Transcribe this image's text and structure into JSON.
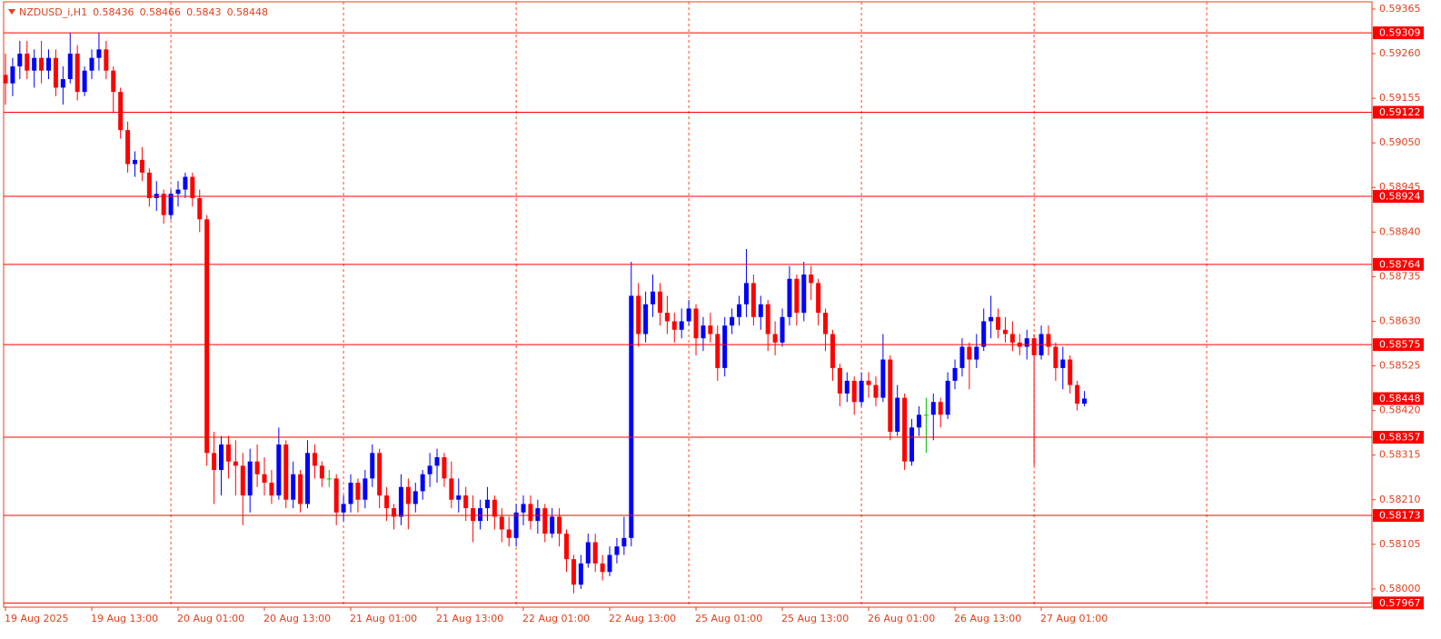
{
  "chart_data": {
    "type": "candlestick",
    "title": "NZDUSD_i,H1",
    "up_color": "#0000ff",
    "down_color": "#ff0000",
    "doji_color": "#00c000",
    "level_color": "#ff0000",
    "separator_color": "#ff4a1c",
    "period_separators": true,
    "ylim": [
      0.57957,
      0.59382
    ],
    "yticks": [
      0.59365,
      {
        "value": 0.5926,
        "label": "0.59260"
      },
      0.59155,
      {
        "value": 0.5905,
        "label": "0.59050"
      },
      0.58945,
      {
        "value": 0.5884,
        "label": "0.58840"
      },
      0.58735,
      {
        "value": 0.5863,
        "label": "0.58630"
      },
      0.58525,
      {
        "value": 0.5842,
        "label": "0.58420"
      },
      0.58315,
      {
        "value": 0.5821,
        "label": "0.58210"
      },
      0.58105,
      {
        "value": 0.58,
        "label": "0.58000"
      }
    ],
    "levels": [
      0.59309,
      0.59122,
      0.58924,
      0.58764,
      0.58575,
      0.58357,
      0.58173,
      0.57967
    ],
    "categories": [
      "19 Aug 2025",
      null,
      null,
      null,
      null,
      null,
      null,
      null,
      null,
      null,
      null,
      null,
      "19 Aug 13:00",
      null,
      null,
      null,
      null,
      null,
      null,
      null,
      null,
      null,
      null,
      null,
      "20 Aug 01:00",
      null,
      null,
      null,
      null,
      null,
      null,
      null,
      null,
      null,
      null,
      null,
      "20 Aug 13:00",
      null,
      null,
      null,
      null,
      null,
      null,
      null,
      null,
      null,
      null,
      null,
      "21 Aug 01:00",
      null,
      null,
      null,
      null,
      null,
      null,
      null,
      null,
      null,
      null,
      null,
      "21 Aug 13:00",
      null,
      null,
      null,
      null,
      null,
      null,
      null,
      null,
      null,
      null,
      null,
      "22 Aug 01:00",
      null,
      null,
      null,
      null,
      null,
      null,
      null,
      null,
      null,
      null,
      null,
      "22 Aug 13:00",
      null,
      null,
      null,
      null,
      null,
      null,
      null,
      null,
      null,
      null,
      null,
      "25 Aug 01:00",
      null,
      null,
      null,
      null,
      null,
      null,
      null,
      null,
      null,
      null,
      null,
      "25 Aug 13:00",
      null,
      null,
      null,
      null,
      null,
      null,
      null,
      null,
      null,
      null,
      null,
      "26 Aug 01:00",
      null,
      null,
      null,
      null,
      null,
      null,
      null,
      null,
      null,
      null,
      null,
      "26 Aug 13:00",
      null,
      null,
      null,
      null,
      null,
      null,
      null,
      null,
      null,
      null,
      null,
      "27 Aug 01:00",
      null,
      null,
      null,
      null,
      null,
      null
    ],
    "ohlc": [
      [
        0.5921,
        0.5926,
        0.5914,
        0.5919
      ],
      [
        0.5919,
        0.5925,
        0.5916,
        0.5923
      ],
      [
        0.5923,
        0.5929,
        0.592,
        0.5926
      ],
      [
        0.5926,
        0.5929,
        0.592,
        0.5922
      ],
      [
        0.5922,
        0.5927,
        0.5918,
        0.5925
      ],
      [
        0.5925,
        0.5929,
        0.5919,
        0.5922
      ],
      [
        0.5922,
        0.5927,
        0.592,
        0.5925
      ],
      [
        0.5925,
        0.5927,
        0.5916,
        0.5918
      ],
      [
        0.5918,
        0.5923,
        0.5914,
        0.592
      ],
      [
        0.592,
        0.5931,
        0.5919,
        0.5926
      ],
      [
        0.5926,
        0.5928,
        0.5915,
        0.5917
      ],
      [
        0.5917,
        0.5923,
        0.5916,
        0.5922
      ],
      [
        0.5922,
        0.5927,
        0.592,
        0.5925
      ],
      [
        0.5925,
        0.5931,
        0.5922,
        0.5927
      ],
      [
        0.5927,
        0.5929,
        0.592,
        0.5922
      ],
      [
        0.5922,
        0.5923,
        0.5912,
        0.5917
      ],
      [
        0.5917,
        0.5918,
        0.5906,
        0.5908
      ],
      [
        0.5908,
        0.591,
        0.5898,
        0.59
      ],
      [
        0.59,
        0.5903,
        0.5897,
        0.5901
      ],
      [
        0.5901,
        0.5904,
        0.5896,
        0.5898
      ],
      [
        0.5898,
        0.5899,
        0.589,
        0.5892
      ],
      [
        0.5892,
        0.5896,
        0.5889,
        0.5893
      ],
      [
        0.5893,
        0.5894,
        0.5886,
        0.5888
      ],
      [
        0.5888,
        0.5894,
        0.5887,
        0.5893
      ],
      [
        0.5893,
        0.5896,
        0.589,
        0.5894
      ],
      [
        0.5894,
        0.5898,
        0.5892,
        0.5897
      ],
      [
        0.5897,
        0.5898,
        0.589,
        0.5892
      ],
      [
        0.5892,
        0.5894,
        0.5884,
        0.5887
      ],
      [
        0.5887,
        0.5888,
        0.5829,
        0.5832
      ],
      [
        0.5832,
        0.5837,
        0.582,
        0.5828
      ],
      [
        0.5828,
        0.5836,
        0.5822,
        0.5834
      ],
      [
        0.5834,
        0.5836,
        0.5826,
        0.583
      ],
      [
        0.583,
        0.5835,
        0.5822,
        0.5829
      ],
      [
        0.5829,
        0.5832,
        0.5815,
        0.5822
      ],
      [
        0.5822,
        0.5833,
        0.5818,
        0.583
      ],
      [
        0.583,
        0.5834,
        0.5824,
        0.5827
      ],
      [
        0.5827,
        0.5831,
        0.5822,
        0.5825
      ],
      [
        0.5825,
        0.5828,
        0.582,
        0.5822
      ],
      [
        0.5822,
        0.5838,
        0.5821,
        0.5834
      ],
      [
        0.5834,
        0.5835,
        0.5819,
        0.5821
      ],
      [
        0.5821,
        0.583,
        0.5819,
        0.5827
      ],
      [
        0.5827,
        0.5828,
        0.5818,
        0.582
      ],
      [
        0.582,
        0.5835,
        0.5819,
        0.5832
      ],
      [
        0.5832,
        0.5834,
        0.5826,
        0.5829
      ],
      [
        0.5829,
        0.583,
        0.5824,
        0.5826
      ],
      [
        0.5826,
        0.5828,
        0.5824,
        0.5826
      ],
      [
        0.5826,
        0.5827,
        0.5815,
        0.5818
      ],
      [
        0.5818,
        0.5822,
        0.5816,
        0.582
      ],
      [
        0.582,
        0.5827,
        0.5818,
        0.5825
      ],
      [
        0.5825,
        0.5826,
        0.5818,
        0.5821
      ],
      [
        0.5821,
        0.5828,
        0.5819,
        0.5826
      ],
      [
        0.5826,
        0.5834,
        0.5824,
        0.5832
      ],
      [
        0.5832,
        0.5833,
        0.5819,
        0.5822
      ],
      [
        0.5822,
        0.5824,
        0.5816,
        0.5819
      ],
      [
        0.5819,
        0.582,
        0.5814,
        0.5817
      ],
      [
        0.5817,
        0.5827,
        0.5815,
        0.5824
      ],
      [
        0.5824,
        0.5826,
        0.5814,
        0.582
      ],
      [
        0.582,
        0.5825,
        0.5818,
        0.5823
      ],
      [
        0.5823,
        0.5828,
        0.5821,
        0.5827
      ],
      [
        0.5827,
        0.5832,
        0.5824,
        0.5829
      ],
      [
        0.5829,
        0.5833,
        0.5825,
        0.5831
      ],
      [
        0.5831,
        0.5832,
        0.5824,
        0.5826
      ],
      [
        0.5826,
        0.583,
        0.5819,
        0.5821
      ],
      [
        0.5821,
        0.5826,
        0.5818,
        0.5822
      ],
      [
        0.5822,
        0.5824,
        0.5816,
        0.5819
      ],
      [
        0.5819,
        0.5822,
        0.5811,
        0.5816
      ],
      [
        0.5816,
        0.5821,
        0.5814,
        0.5819
      ],
      [
        0.5819,
        0.5824,
        0.5816,
        0.5821
      ],
      [
        0.5821,
        0.5822,
        0.5814,
        0.5817
      ],
      [
        0.5817,
        0.5819,
        0.5811,
        0.5814
      ],
      [
        0.5814,
        0.5817,
        0.581,
        0.5812
      ],
      [
        0.5812,
        0.582,
        0.581,
        0.5818
      ],
      [
        0.5818,
        0.5822,
        0.5815,
        0.582
      ],
      [
        0.582,
        0.5822,
        0.5814,
        0.5816
      ],
      [
        0.5816,
        0.5821,
        0.5813,
        0.5819
      ],
      [
        0.5819,
        0.582,
        0.5811,
        0.5813
      ],
      [
        0.5813,
        0.5819,
        0.5812,
        0.5817
      ],
      [
        0.5817,
        0.5819,
        0.581,
        0.5813
      ],
      [
        0.5813,
        0.5814,
        0.5804,
        0.5807
      ],
      [
        0.5807,
        0.5808,
        0.5799,
        0.5801
      ],
      [
        0.5801,
        0.5808,
        0.58,
        0.5806
      ],
      [
        0.5806,
        0.5813,
        0.5805,
        0.5811
      ],
      [
        0.5811,
        0.5813,
        0.5804,
        0.5806
      ],
      [
        0.5806,
        0.5808,
        0.5802,
        0.5804
      ],
      [
        0.5804,
        0.581,
        0.5803,
        0.5808
      ],
      [
        0.5808,
        0.5812,
        0.5806,
        0.581
      ],
      [
        0.581,
        0.5817,
        0.5808,
        0.5812
      ],
      [
        0.5812,
        0.5877,
        0.581,
        0.5869
      ],
      [
        0.5869,
        0.5872,
        0.5857,
        0.586
      ],
      [
        0.586,
        0.587,
        0.5858,
        0.5867
      ],
      [
        0.5867,
        0.5874,
        0.5864,
        0.587
      ],
      [
        0.587,
        0.5872,
        0.5862,
        0.5865
      ],
      [
        0.5865,
        0.5869,
        0.586,
        0.5863
      ],
      [
        0.5863,
        0.5865,
        0.5858,
        0.5861
      ],
      [
        0.5861,
        0.5866,
        0.5859,
        0.5863
      ],
      [
        0.5863,
        0.5868,
        0.5862,
        0.5866
      ],
      [
        0.5866,
        0.5867,
        0.5855,
        0.5859
      ],
      [
        0.5859,
        0.5864,
        0.5856,
        0.5862
      ],
      [
        0.5862,
        0.5865,
        0.5858,
        0.586
      ],
      [
        0.586,
        0.5862,
        0.5849,
        0.5852
      ],
      [
        0.5852,
        0.5864,
        0.585,
        0.5862
      ],
      [
        0.5862,
        0.5866,
        0.586,
        0.5864
      ],
      [
        0.5864,
        0.5869,
        0.5862,
        0.5867
      ],
      [
        0.5867,
        0.588,
        0.5864,
        0.5872
      ],
      [
        0.5872,
        0.5874,
        0.5862,
        0.5864
      ],
      [
        0.5864,
        0.5869,
        0.5861,
        0.5867
      ],
      [
        0.5867,
        0.5868,
        0.5856,
        0.586
      ],
      [
        0.586,
        0.5863,
        0.5855,
        0.5858
      ],
      [
        0.5858,
        0.5866,
        0.5857,
        0.5864
      ],
      [
        0.5864,
        0.5876,
        0.5862,
        0.5873
      ],
      [
        0.5873,
        0.5874,
        0.5862,
        0.5865
      ],
      [
        0.5865,
        0.5877,
        0.5863,
        0.5874
      ],
      [
        0.5874,
        0.5876,
        0.5868,
        0.5872
      ],
      [
        0.5872,
        0.5873,
        0.5862,
        0.5865
      ],
      [
        0.5865,
        0.5866,
        0.5856,
        0.586
      ],
      [
        0.586,
        0.5861,
        0.5849,
        0.5852
      ],
      [
        0.5852,
        0.5853,
        0.5843,
        0.5846
      ],
      [
        0.5846,
        0.5851,
        0.5844,
        0.5849
      ],
      [
        0.5849,
        0.585,
        0.5841,
        0.5844
      ],
      [
        0.5844,
        0.5851,
        0.5843,
        0.5849
      ],
      [
        0.5849,
        0.5851,
        0.5845,
        0.5848
      ],
      [
        0.5848,
        0.585,
        0.5843,
        0.5845
      ],
      [
        0.5845,
        0.586,
        0.5844,
        0.5854
      ],
      [
        0.5854,
        0.5855,
        0.5835,
        0.5837
      ],
      [
        0.5837,
        0.5848,
        0.5836,
        0.5845
      ],
      [
        0.5845,
        0.5846,
        0.5828,
        0.583
      ],
      [
        0.583,
        0.584,
        0.5829,
        0.5838
      ],
      [
        0.5838,
        0.5843,
        0.5836,
        0.5841
      ],
      [
        0.5841,
        0.5845,
        0.5832,
        0.5841
      ],
      [
        0.5841,
        0.5846,
        0.5835,
        0.5844
      ],
      [
        0.5844,
        0.5845,
        0.5838,
        0.5841
      ],
      [
        0.5841,
        0.5851,
        0.584,
        0.5849
      ],
      [
        0.5849,
        0.5854,
        0.5847,
        0.5852
      ],
      [
        0.5852,
        0.5859,
        0.585,
        0.5857
      ],
      [
        0.5857,
        0.5858,
        0.5847,
        0.5854
      ],
      [
        0.5854,
        0.586,
        0.5852,
        0.5857
      ],
      [
        0.5857,
        0.5866,
        0.5856,
        0.5863
      ],
      [
        0.5863,
        0.5869,
        0.5859,
        0.5864
      ],
      [
        0.5864,
        0.5866,
        0.5859,
        0.5861
      ],
      [
        0.5861,
        0.5864,
        0.5858,
        0.586
      ],
      [
        0.586,
        0.5863,
        0.5856,
        0.5858
      ],
      [
        0.5858,
        0.586,
        0.5855,
        0.5857
      ],
      [
        0.5857,
        0.5861,
        0.5854,
        0.5859
      ],
      [
        0.5859,
        0.586,
        0.5829,
        0.5855
      ],
      [
        0.5855,
        0.5862,
        0.5854,
        0.586
      ],
      [
        0.586,
        0.5862,
        0.5855,
        0.5857
      ],
      [
        0.5857,
        0.5858,
        0.5849,
        0.5852
      ],
      [
        0.5852,
        0.5857,
        0.5847,
        0.5854
      ],
      [
        0.5854,
        0.5855,
        0.5846,
        0.5848
      ],
      [
        0.5848,
        0.5849,
        0.5842,
        0.58436
      ],
      [
        0.58436,
        0.58466,
        0.5843,
        0.58448
      ]
    ]
  }
}
